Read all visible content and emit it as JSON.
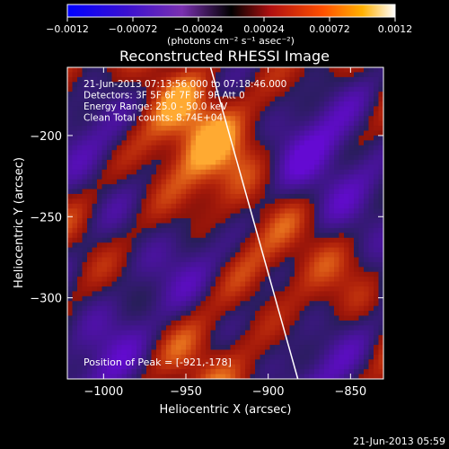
{
  "chart_data": {
    "type": "heatmap",
    "title": "Reconstructed RHESSI Image",
    "xlabel": "Heliocentric X (arcsec)",
    "ylabel": "Heliocentric Y (arcsec)",
    "xlim": [
      -1022,
      -830
    ],
    "ylim": [
      -350,
      -158
    ],
    "x_ticks": [
      -1000,
      -950,
      -900,
      -850
    ],
    "y_ticks": [
      -300,
      -250,
      -200
    ],
    "colorbar": {
      "range": [
        -0.0012,
        0.0012
      ],
      "ticks": [
        -0.0012,
        -0.00072,
        -0.00024,
        0.00024,
        0.00072,
        0.0012
      ],
      "tick_labels": [
        "−0.0012",
        "−0.00072",
        "−0.00024",
        "0.00024",
        "0.00072",
        "0.0012"
      ],
      "unit": "(photons cm⁻² s⁻¹ asec⁻²)"
    },
    "annotations": [
      "21-Jun-2013 07:13:56.000 to 07:18:46.000",
      "Detectors: 3F 5F 6F 7F 8F 9F  Att 0",
      "Energy Range: 25.0 - 50.0 keV",
      "Clean     Total counts: 8.74E+04"
    ],
    "peak_label": "Position of Peak = [-921,-178]",
    "limb_line": {
      "x": [
        -935,
        -882
      ],
      "y": [
        -158,
        -350
      ]
    }
  },
  "footer_timestamp": "21-Jun-2013 05:59",
  "colors": {
    "background": "#000000",
    "text": "#ffffff"
  }
}
